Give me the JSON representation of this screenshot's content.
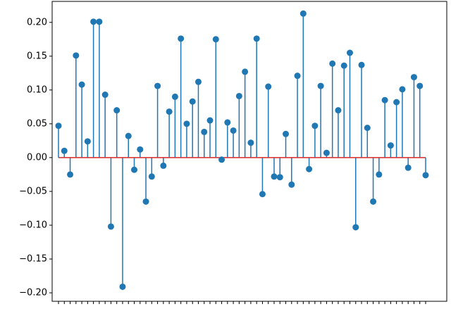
{
  "chart_data": {
    "type": "stem",
    "color": "#1f77b4",
    "baseline_color": "#d62728",
    "categories": [
      null,
      null,
      null,
      null,
      null,
      null,
      null,
      null,
      null,
      null,
      null,
      null,
      null,
      null,
      null,
      null,
      null,
      null,
      null,
      null,
      null,
      null,
      null,
      null,
      null,
      null,
      null,
      null,
      null,
      null,
      null,
      null,
      null,
      null,
      null,
      null,
      null,
      null,
      null,
      null,
      null,
      null,
      null,
      null,
      null,
      null,
      null,
      null,
      null,
      null,
      null,
      null,
      null,
      null,
      null,
      null,
      null,
      null,
      null,
      null,
      null,
      null,
      null,
      null
    ],
    "values": [
      0.047,
      0.01,
      -0.025,
      0.151,
      0.108,
      0.024,
      0.201,
      0.201,
      0.093,
      -0.102,
      0.07,
      -0.191,
      0.032,
      -0.018,
      0.012,
      -0.065,
      -0.028,
      0.106,
      -0.012,
      0.068,
      0.09,
      0.176,
      0.05,
      0.083,
      0.112,
      0.038,
      0.055,
      0.175,
      -0.003,
      0.052,
      0.04,
      0.091,
      0.127,
      0.022,
      0.176,
      -0.054,
      0.105,
      -0.028,
      -0.029,
      0.035,
      -0.04,
      0.121,
      0.213,
      -0.017,
      0.047,
      0.106,
      0.007,
      0.139,
      0.07,
      0.136,
      0.155,
      -0.103,
      0.137,
      0.044,
      -0.065,
      -0.025,
      0.085,
      0.018,
      0.082,
      0.101,
      -0.015,
      0.119,
      0.106,
      -0.026
    ],
    "ylim": [
      -0.2125,
      0.231
    ],
    "yticks": [
      {
        "value": -0.2,
        "label": "−0.20"
      },
      {
        "value": -0.15,
        "label": "−0.15"
      },
      {
        "value": -0.1,
        "label": "−0.10"
      },
      {
        "value": -0.05,
        "label": "−0.05"
      },
      {
        "value": 0,
        "label": "0.00"
      },
      {
        "value": 0.05,
        "label": "0.05"
      },
      {
        "value": 0.1,
        "label": "0.10"
      },
      {
        "value": 0.15,
        "label": "0.15"
      },
      {
        "value": 0.2,
        "label": "0.20"
      }
    ]
  }
}
